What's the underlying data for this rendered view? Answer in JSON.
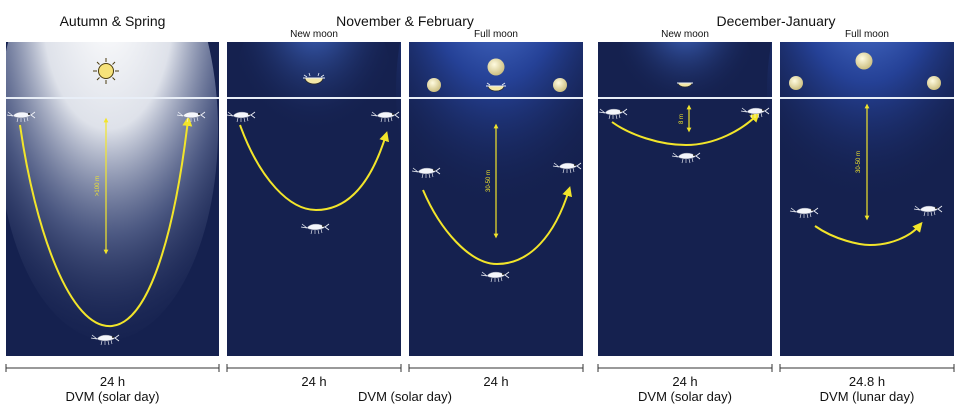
{
  "groups": [
    {
      "title": "Autumn & Spring"
    },
    {
      "title": "November & February"
    },
    {
      "title": "December-January"
    }
  ],
  "panels": [
    {
      "subtitle": "",
      "depth_label": ">100 m",
      "period": "24 h",
      "caption": "DVM (solar day)",
      "light": "sun"
    },
    {
      "subtitle": "New moon",
      "depth_label": "",
      "period": "24 h",
      "caption": "DVM (solar day)",
      "light": "moon-new"
    },
    {
      "subtitle": "Full moon",
      "depth_label": "30-50 m",
      "period": "24 h",
      "caption": "",
      "light": "moon-full"
    },
    {
      "subtitle": "New moon",
      "depth_label": "8 m",
      "period": "24 h",
      "caption": "DVM (solar day)",
      "light": "moon-new"
    },
    {
      "subtitle": "Full moon",
      "depth_label": "30-50 m",
      "period": "24.8 h",
      "caption": "DVM (lunar day)",
      "light": "moon-full"
    }
  ],
  "shared_caption": "DVM (solar day)",
  "colors": {
    "water": "#15214f",
    "sun_glow": "#ffffff",
    "moon_glow": "#3a63c9",
    "arrow": "#f2e52a",
    "surface": "#e8eef7"
  },
  "icons": [
    "sun-icon",
    "moon-icon",
    "krill-icon"
  ]
}
